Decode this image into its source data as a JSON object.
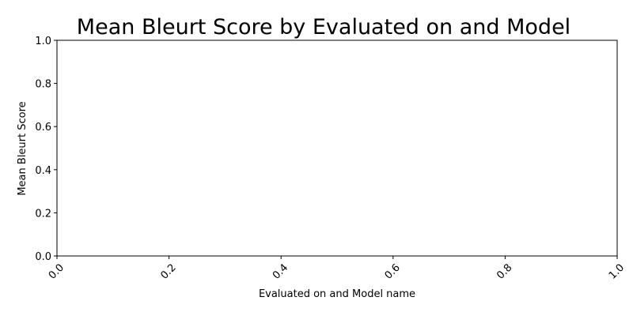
{
  "chart_data": {
    "type": "bar",
    "title": "Mean Bleurt Score by Evaluated on and Model",
    "xlabel": "Evaluated on and Model name",
    "ylabel": "Mean Bleurt Score",
    "categories": [],
    "series": [],
    "xlim": [
      0.0,
      1.0
    ],
    "ylim": [
      0.0,
      1.0
    ],
    "x_ticks": [
      "0.0",
      "0.2",
      "0.4",
      "0.6",
      "0.8",
      "1.0"
    ],
    "y_ticks": [
      "0.0",
      "0.2",
      "0.4",
      "0.6",
      "0.8",
      "1.0"
    ],
    "x_tick_rotation_deg": 45,
    "grid": false,
    "legend": "none"
  }
}
